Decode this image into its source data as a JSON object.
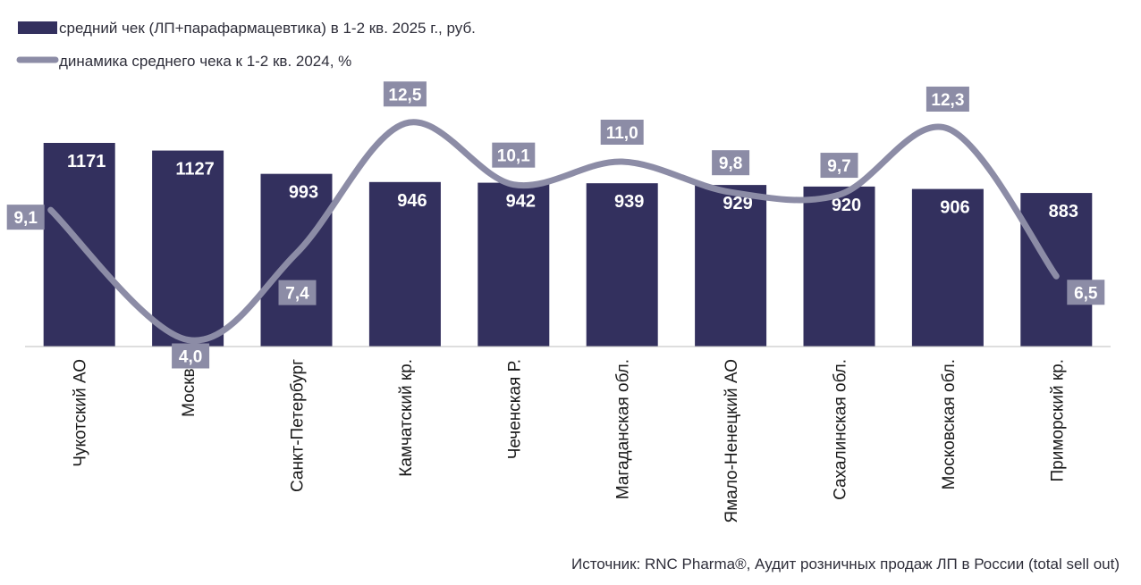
{
  "chart_data": {
    "type": "bar",
    "categories": [
      "Чукотский АО",
      "Москва",
      "Санкт-Петербург",
      "Камчатский кр.",
      "Чеченская Р.",
      "Магаданская обл.",
      "Ямало-Ненецкий АО",
      "Сахалинская обл.",
      "Московская обл.",
      "Приморский кр."
    ],
    "series": [
      {
        "name": "средний чек (ЛП+парафармацевтика) в 1-2 кв. 2025 г., руб.",
        "type": "bar",
        "values": [
          1171,
          1127,
          993,
          946,
          942,
          939,
          929,
          920,
          906,
          883
        ],
        "labels": [
          "1171",
          "1127",
          "993",
          "946",
          "942",
          "939",
          "929",
          "920",
          "906",
          "883"
        ],
        "color": "#33305e"
      },
      {
        "name": "динамика среднего чека к 1-2 кв. 2024, %",
        "type": "line",
        "values": [
          9.1,
          4.0,
          7.4,
          12.5,
          10.1,
          11.0,
          9.8,
          9.7,
          12.3,
          6.5
        ],
        "labels": [
          "9,1",
          "4,0",
          "7,4",
          "12,5",
          "10,1",
          "11,0",
          "9,8",
          "9,7",
          "12,3",
          "6,5"
        ],
        "color": "#8c8ca6"
      }
    ],
    "legend_position": "top-left",
    "grid": false
  },
  "source": "Источник: RNC Pharma®, Аудит розничных продаж ЛП в России (total sell out)"
}
